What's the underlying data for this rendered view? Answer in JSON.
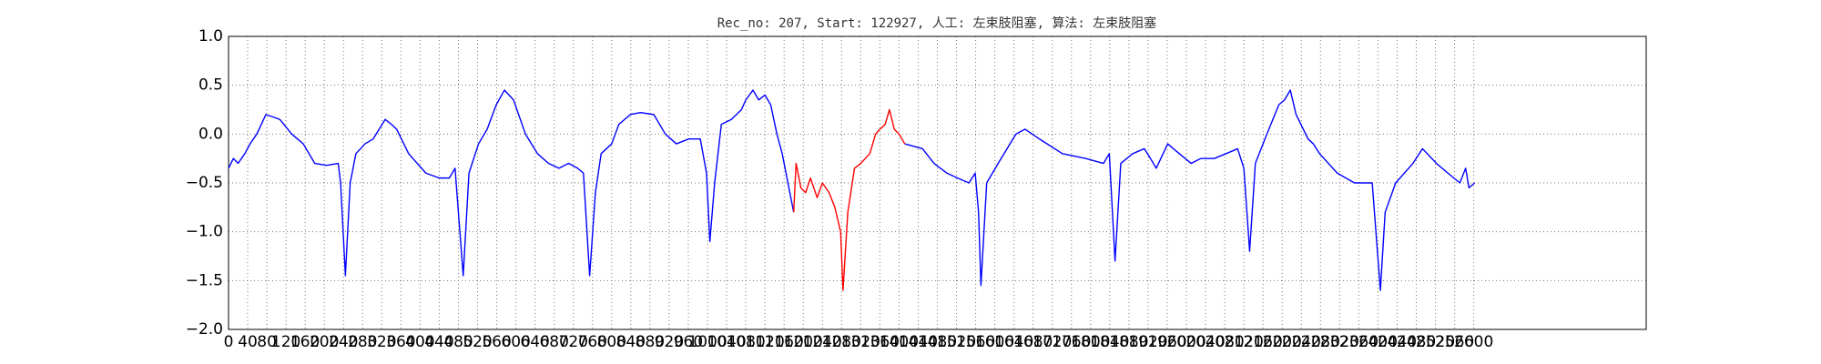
{
  "chart_data": {
    "type": "line",
    "title": "Rec_no: 207, Start: 122927, 人工: 左束肢阻塞, 算法: 左束肢阻塞",
    "x": [
      0,
      10,
      20,
      34,
      45,
      59,
      78,
      90,
      107,
      132,
      156,
      180,
      205,
      229,
      234,
      244,
      254,
      266,
      285,
      302,
      327,
      340,
      351,
      376,
      412,
      440,
      461,
      473,
      490,
      502,
      522,
      540,
      559,
      576,
      595,
      620,
      645,
      668,
      690,
      710,
      729,
      741,
      754,
      766,
      778,
      800,
      815,
      839,
      860,
      888,
      912,
      935,
      961,
      985,
      998,
      1005,
      1015,
      1029,
      1050,
      1071,
      1080,
      1095,
      1107,
      1120,
      1132,
      1145,
      1156,
      1180,
      1185,
      1195,
      1205,
      1215,
      1229,
      1240,
      1254,
      1266,
      1278,
      1283,
      1293,
      1307,
      1320,
      1339,
      1351,
      1360,
      1371,
      1380,
      1390,
      1400,
      1412,
      1449,
      1473,
      1500,
      1522,
      1546,
      1559,
      1566,
      1571,
      1583,
      1607,
      1644,
      1663,
      1693,
      1741,
      1790,
      1827,
      1839,
      1851,
      1863,
      1888,
      1912,
      1925,
      1937,
      1961,
      1985,
      2010,
      2030,
      2058,
      2083,
      2107,
      2120,
      2132,
      2144,
      2168,
      2193,
      2205,
      2217,
      2229,
      2254,
      2265,
      2278,
      2315,
      2351,
      2388,
      2405,
      2415,
      2437,
      2473,
      2493,
      2522,
      2546,
      2571,
      2583,
      2590,
      2602
    ],
    "series": [
      {
        "color": "#0000ff",
        "values": [
          -0.35,
          -0.25,
          -0.3,
          -0.2,
          -0.1,
          0.0,
          0.2,
          0.18,
          0.15,
          0.0,
          -0.1,
          -0.3,
          -0.32,
          -0.3,
          -0.5,
          -1.45,
          -0.5,
          -0.2,
          -0.1,
          -0.05,
          0.15,
          0.1,
          0.05,
          -0.2,
          -0.4,
          -0.45,
          -0.45,
          -0.35,
          -1.45,
          -0.4,
          -0.1,
          0.05,
          0.3,
          0.45,
          0.35,
          0.0,
          -0.2,
          -0.3,
          -0.35,
          -0.3,
          -0.35,
          -0.4,
          -1.45,
          -0.6,
          -0.2,
          -0.1,
          0.1,
          0.2,
          0.22,
          0.2,
          0.0,
          -0.1,
          -0.05,
          -0.05,
          -0.4,
          -1.1,
          -0.5,
          0.1,
          0.15,
          0.25,
          0.35,
          0.45,
          0.35,
          0.4,
          0.3,
          0.0,
          -0.2,
          -0.8,
          null,
          null,
          null,
          null,
          null,
          null,
          null,
          null,
          null,
          null,
          null,
          null,
          null,
          null,
          null,
          null,
          null,
          null,
          null,
          null,
          -0.1,
          -0.15,
          -0.3,
          -0.4,
          -0.45,
          -0.5,
          -0.4,
          -0.8,
          -1.55,
          -0.5,
          -0.3,
          0.0,
          0.05,
          -0.05,
          -0.2,
          -0.25,
          -0.3,
          -0.2,
          -1.3,
          -0.3,
          -0.2,
          -0.15,
          -0.25,
          -0.35,
          -0.1,
          -0.2,
          -0.3,
          -0.25,
          -0.25,
          -0.2,
          -0.15,
          -0.35,
          -1.2,
          -0.3,
          0.0,
          0.3,
          0.35,
          0.45,
          0.2,
          -0.05,
          -0.1,
          -0.2,
          -0.4,
          -0.5,
          -0.5,
          -1.6,
          -0.8,
          -0.5,
          -0.3,
          -0.15,
          -0.3,
          -0.4,
          -0.5,
          -0.35,
          -0.55,
          -0.5
        ]
      },
      {
        "color": "#ff0000",
        "values": [
          null,
          null,
          null,
          null,
          null,
          null,
          null,
          null,
          null,
          null,
          null,
          null,
          null,
          null,
          null,
          null,
          null,
          null,
          null,
          null,
          null,
          null,
          null,
          null,
          null,
          null,
          null,
          null,
          null,
          null,
          null,
          null,
          null,
          null,
          null,
          null,
          null,
          null,
          null,
          null,
          null,
          null,
          null,
          null,
          null,
          null,
          null,
          null,
          null,
          null,
          null,
          null,
          null,
          null,
          null,
          null,
          null,
          null,
          null,
          null,
          null,
          null,
          null,
          null,
          null,
          null,
          null,
          -0.8,
          -0.3,
          -0.55,
          -0.6,
          -0.45,
          -0.65,
          -0.5,
          -0.6,
          -0.75,
          -1.0,
          -1.6,
          -0.8,
          -0.35,
          -0.3,
          -0.2,
          0.0,
          0.05,
          0.1,
          0.25,
          0.05,
          0.0,
          -0.1,
          null,
          null,
          null,
          null,
          null,
          null,
          null,
          null,
          null,
          null,
          null,
          null,
          null,
          null,
          null,
          null,
          null,
          null,
          null,
          null,
          null,
          null,
          null,
          null,
          null,
          null,
          null,
          null,
          null,
          null,
          null,
          null,
          null,
          null,
          null,
          null,
          null,
          null,
          null,
          null,
          null,
          null,
          null,
          null,
          null,
          null,
          null,
          null,
          null,
          null,
          null,
          null,
          null,
          null,
          null
        ]
      }
    ],
    "xlim": [
      0,
      2960
    ],
    "xticks": [
      0,
      40,
      80,
      120,
      160,
      200,
      240,
      280,
      320,
      360,
      400,
      440,
      480,
      520,
      560,
      600,
      640,
      680,
      720,
      760,
      800,
      840,
      880,
      920,
      960,
      1000,
      1040,
      1080,
      1120,
      1160,
      1200,
      1240,
      1280,
      1320,
      1360,
      1400,
      1440,
      1480,
      1520,
      1560,
      1600,
      1640,
      1680,
      1720,
      1760,
      1800,
      1840,
      1880,
      1920,
      1960,
      2000,
      2040,
      2080,
      2120,
      2160,
      2200,
      2240,
      2280,
      2320,
      2360,
      2400,
      2440,
      2480,
      2520,
      2560,
      2600
    ],
    "ylim": [
      -2.0,
      1.0
    ],
    "yticks": [
      {
        "value": -2.0,
        "label": "−2.0"
      },
      {
        "value": -1.5,
        "label": "−1.5"
      },
      {
        "value": -1.0,
        "label": "−1.0"
      },
      {
        "value": -0.5,
        "label": "−0.5"
      },
      {
        "value": 0.0,
        "label": "0.0"
      },
      {
        "value": 0.5,
        "label": "0.5"
      },
      {
        "value": 1.0,
        "label": "1.0"
      }
    ],
    "grid": true
  }
}
